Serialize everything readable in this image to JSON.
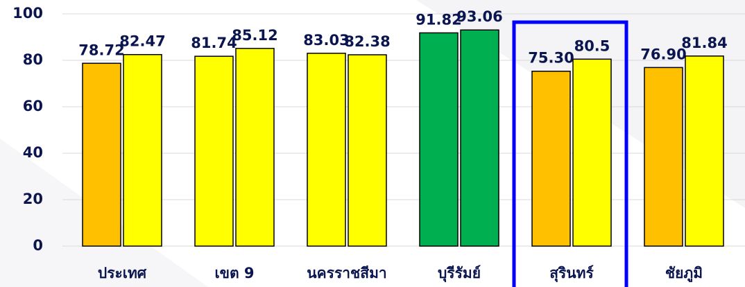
{
  "chart_data": {
    "type": "bar",
    "categories": [
      "ประเทศ",
      "เขต 9",
      "นครราชสีมา",
      "บุรีรัมย์",
      "สุรินทร์",
      "ชัยภูมิ"
    ],
    "series": [
      {
        "values": [
          78.72,
          81.74,
          83.03,
          91.82,
          75.3,
          76.9
        ],
        "value_labels": [
          "78.72",
          "81.74",
          "83.03",
          "91.82",
          "75.30",
          "76.90"
        ],
        "colors": [
          "#FFC000",
          "#FFFF00",
          "#FFFF00",
          "#00B050",
          "#FFC000",
          "#FFC000"
        ]
      },
      {
        "values": [
          82.47,
          85.12,
          82.38,
          93.06,
          80.5,
          81.84
        ],
        "colors": [
          "#FFFF00",
          "#FFFF00",
          "#FFFF00",
          "#00B050",
          "#FFFF00",
          "#FFFF00"
        ]
      }
    ],
    "ylim": [
      0,
      100
    ],
    "yticks": [
      0,
      20,
      40,
      60,
      80,
      100
    ],
    "grid": true,
    "highlight_index": 4,
    "highlight_color": "#0000FF"
  }
}
